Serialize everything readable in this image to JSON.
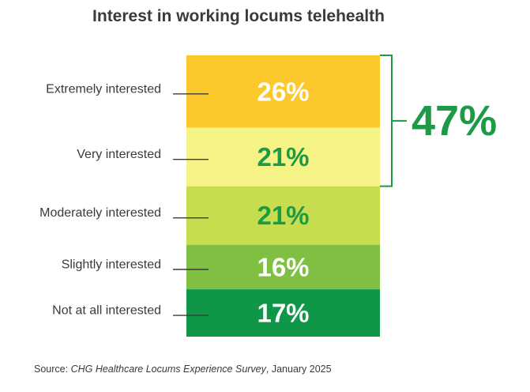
{
  "chart_data": {
    "type": "bar",
    "title": "Interest in working locums telehealth",
    "categories": [
      "Extremely interested",
      "Very interested",
      "Moderately interested",
      "Slightly interested",
      "Not at all interested"
    ],
    "values": [
      26,
      21,
      21,
      16,
      17
    ],
    "value_labels": [
      "26%",
      "21%",
      "21%",
      "16%",
      "17%"
    ],
    "segment_colors": [
      "#fcc82c",
      "#f6f386",
      "#c6dd50",
      "#7fbf42",
      "#0f9647"
    ],
    "segment_label_colors": [
      "#ffffff",
      "#1d9a45",
      "#1d9a45",
      "#ffffff",
      "#ffffff"
    ],
    "stacked": true,
    "orientation": "vertical",
    "bracket": {
      "label": "47%",
      "value": 47,
      "covers": [
        "Extremely interested",
        "Very interested"
      ],
      "color": "#1d9a45"
    },
    "xlabel": "",
    "ylabel": ""
  },
  "source": {
    "prefix": "Source: ",
    "name": "CHG Healthcare Locums Experience Survey",
    "suffix": ", January 2025"
  }
}
